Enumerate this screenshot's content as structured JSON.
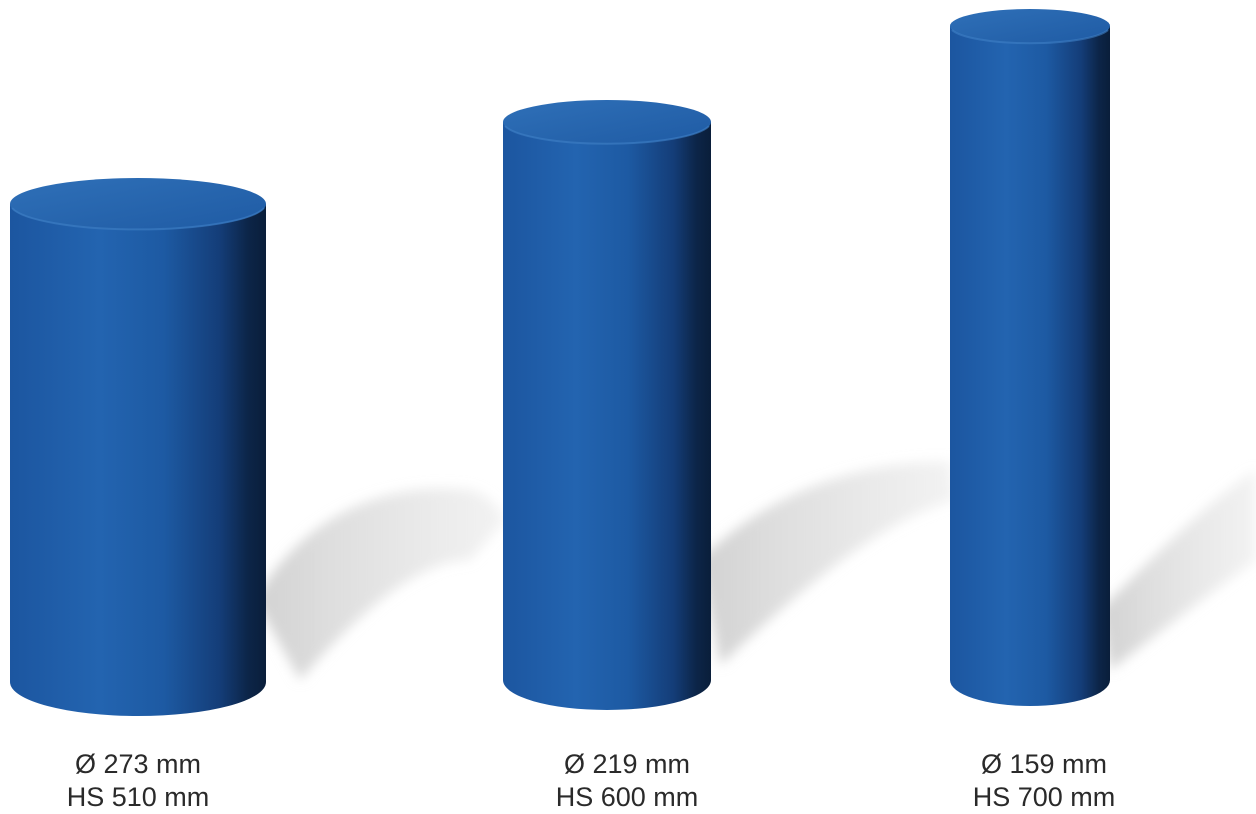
{
  "colors": {
    "bollard_blue": "#1f5ea8",
    "bollard_dark": "#0b2140",
    "bollard_top": "#2868b2",
    "shadow": "#d8d8d8",
    "text": "#2a2a2a"
  },
  "bollards": [
    {
      "diameter_label": "Ø 273 mm",
      "height_label": "HS 510 mm"
    },
    {
      "diameter_label": "Ø 219 mm",
      "height_label": "HS 600 mm"
    },
    {
      "diameter_label": "Ø 159 mm",
      "height_label": "HS 700 mm"
    }
  ]
}
